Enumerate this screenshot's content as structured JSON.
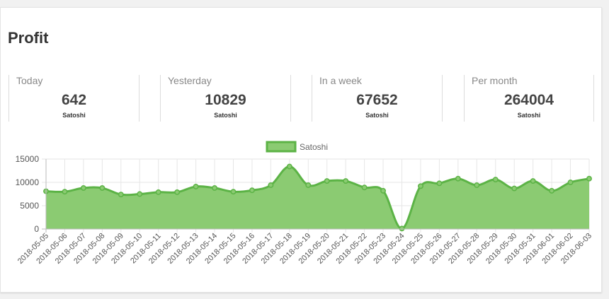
{
  "page": {
    "title": "Profit"
  },
  "stats": [
    {
      "label": "Today",
      "value": "642",
      "unit": "Satoshi"
    },
    {
      "label": "Yesterday",
      "value": "10829",
      "unit": "Satoshi"
    },
    {
      "label": "In a week",
      "value": "67652",
      "unit": "Satoshi"
    },
    {
      "label": "Per month",
      "value": "264004",
      "unit": "Satoshi"
    }
  ],
  "colors": {
    "line": "#5cb346",
    "fill": "#8bcb72",
    "grid": "#e6e6e6"
  },
  "chart_data": {
    "type": "area",
    "title": "",
    "xlabel": "",
    "ylabel": "",
    "legend": {
      "position": "top",
      "label": "Satoshi"
    },
    "grid": true,
    "ylim": [
      0,
      15000
    ],
    "yticks": [
      0,
      5000,
      10000,
      15000
    ],
    "categories": [
      "2018-05-05",
      "2018-05-06",
      "2018-05-07",
      "2018-05-08",
      "2018-05-09",
      "2018-05-10",
      "2018-05-11",
      "2018-05-12",
      "2018-05-13",
      "2018-05-14",
      "2018-05-15",
      "2018-05-16",
      "2018-05-17",
      "2018-05-18",
      "2018-05-19",
      "2018-05-20",
      "2018-05-21",
      "2018-05-22",
      "2018-05-23",
      "2018-05-24",
      "2018-05-25",
      "2018-05-26",
      "2018-05-27",
      "2018-05-28",
      "2018-05-29",
      "2018-05-30",
      "2018-05-31",
      "2018-06-01",
      "2018-06-02",
      "2018-06-03"
    ],
    "series": [
      {
        "name": "Satoshi",
        "values": [
          8100,
          8000,
          8800,
          8800,
          7400,
          7500,
          7900,
          7900,
          9100,
          8800,
          8000,
          8300,
          9400,
          13400,
          9400,
          10300,
          10300,
          8900,
          8200,
          100,
          9200,
          9800,
          10800,
          9400,
          10600,
          8700,
          10300,
          8200,
          10000,
          10800
        ]
      }
    ]
  }
}
